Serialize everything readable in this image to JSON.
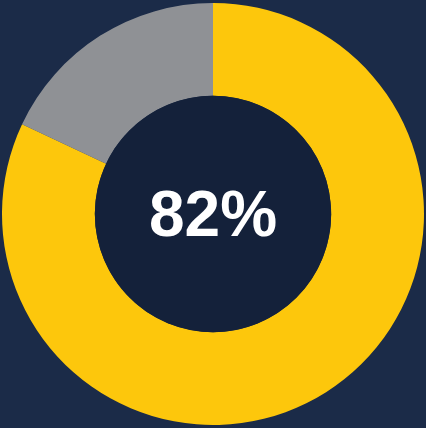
{
  "chart_data": {
    "type": "donut",
    "values": [
      82,
      18
    ],
    "colors": [
      "#fdc70c",
      "#a3a3a3"
    ],
    "annotations": [
      {
        "text": "82%"
      }
    ]
  }
}
